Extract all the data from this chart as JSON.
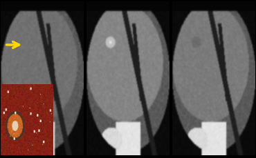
{
  "background_color": "#000000",
  "figsize": [
    3.7,
    2.3
  ],
  "dpi": 100,
  "arrow_color": "#FFD700",
  "n_panels": 3
}
